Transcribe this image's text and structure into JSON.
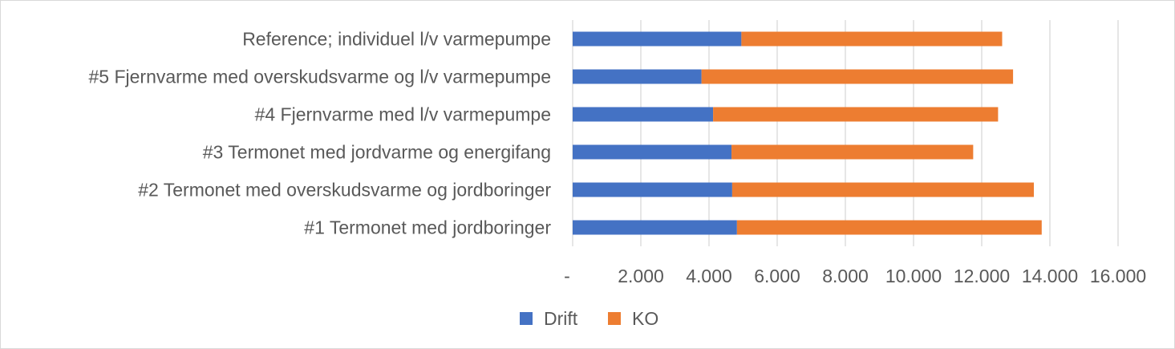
{
  "chart_data": {
    "type": "bar",
    "orientation": "horizontal",
    "stacked": true,
    "categories": [
      "Reference; individuel l/v varmepumpe",
      "#5 Fjernvarme med overskudsvarme og l/v varmepumpe",
      "#4 Fjernvarme med l/v varmepumpe",
      "#3 Termonet med jordvarme og energifang",
      "#2 Termonet med overskudsvarme og jordboringer",
      "#1 Termonet med jordboringer"
    ],
    "series": [
      {
        "name": "Drift",
        "color": "#4472c4",
        "values": [
          4950,
          3780,
          4120,
          4660,
          4680,
          4820
        ]
      },
      {
        "name": "KO",
        "color": "#ed7d31",
        "values": [
          7650,
          9140,
          8360,
          7090,
          8850,
          8940
        ]
      }
    ],
    "x_ticks": [
      0,
      2000,
      4000,
      6000,
      8000,
      10000,
      12000,
      14000,
      16000
    ],
    "x_tick_labels": [
      "-",
      "2.000",
      "4.000",
      "6.000",
      "8.000",
      "10.000",
      "12.000",
      "14.000",
      "16.000"
    ],
    "xlim": [
      0,
      16000
    ],
    "grid": true,
    "gridline_color": "#d9d9d9",
    "legend_position": "bottom",
    "title": "",
    "xlabel": "",
    "ylabel": ""
  }
}
